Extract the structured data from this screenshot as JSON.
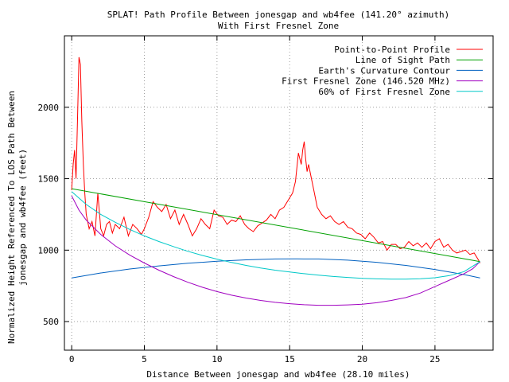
{
  "chart_data": {
    "type": "line",
    "title_line1": "SPLAT! Path Profile Between jonesgap and wb4fee (141.20° azimuth)",
    "title_line2": "With First Fresnel Zone",
    "xlabel": "Distance Between jonesgap and wb4fee (28.10 miles)",
    "ylabel_line1": "Normalized Height Referenced To LOS Path Between",
    "ylabel_line2": "jonesgap and wb4fee (feet)",
    "xlim": [
      -0.5,
      29
    ],
    "ylim": [
      300,
      2500
    ],
    "x_ticks": [
      0,
      5,
      10,
      15,
      20,
      25
    ],
    "y_ticks": [
      500,
      1000,
      1500,
      2000
    ],
    "grid": true,
    "legend_position": "top-right",
    "series": [
      {
        "name": "Point-to-Point Profile",
        "color": "#ff0000",
        "x": [
          0,
          0.1,
          0.2,
          0.3,
          0.4,
          0.5,
          0.6,
          0.7,
          0.8,
          0.9,
          1.0,
          1.2,
          1.4,
          1.6,
          1.8,
          2.0,
          2.2,
          2.4,
          2.6,
          2.8,
          3.0,
          3.3,
          3.6,
          3.9,
          4.2,
          4.5,
          4.8,
          5.0,
          5.3,
          5.6,
          5.9,
          6.2,
          6.5,
          6.8,
          7.1,
          7.4,
          7.7,
          8.0,
          8.3,
          8.6,
          8.9,
          9.2,
          9.5,
          9.8,
          10.1,
          10.4,
          10.7,
          11.0,
          11.3,
          11.6,
          11.9,
          12.2,
          12.5,
          12.8,
          13.1,
          13.4,
          13.7,
          14.0,
          14.3,
          14.6,
          14.9,
          15.2,
          15.4,
          15.6,
          15.8,
          15.9,
          16.0,
          16.1,
          16.2,
          16.3,
          16.5,
          16.7,
          16.9,
          17.2,
          17.5,
          17.8,
          18.1,
          18.4,
          18.7,
          19.0,
          19.3,
          19.6,
          19.9,
          20.2,
          20.5,
          20.8,
          21.1,
          21.4,
          21.7,
          22.0,
          22.3,
          22.6,
          22.9,
          23.2,
          23.5,
          23.8,
          24.1,
          24.4,
          24.7,
          25.0,
          25.3,
          25.6,
          25.9,
          26.2,
          26.5,
          26.8,
          27.1,
          27.4,
          27.7,
          28.0,
          28.1
        ],
        "y": [
          1420,
          1600,
          1700,
          1500,
          1900,
          2350,
          2300,
          1900,
          1600,
          1400,
          1250,
          1150,
          1200,
          1100,
          1400,
          1150,
          1100,
          1180,
          1200,
          1120,
          1180,
          1150,
          1230,
          1100,
          1180,
          1150,
          1110,
          1150,
          1230,
          1340,
          1300,
          1270,
          1320,
          1220,
          1280,
          1180,
          1250,
          1180,
          1100,
          1150,
          1220,
          1180,
          1150,
          1280,
          1240,
          1230,
          1180,
          1210,
          1200,
          1240,
          1180,
          1150,
          1130,
          1170,
          1190,
          1210,
          1250,
          1220,
          1280,
          1300,
          1350,
          1400,
          1480,
          1680,
          1600,
          1700,
          1760,
          1640,
          1550,
          1600,
          1500,
          1400,
          1300,
          1250,
          1220,
          1240,
          1200,
          1180,
          1200,
          1160,
          1150,
          1120,
          1110,
          1080,
          1120,
          1090,
          1050,
          1060,
          1000,
          1040,
          1040,
          1010,
          1020,
          1060,
          1030,
          1050,
          1020,
          1050,
          1010,
          1060,
          1080,
          1020,
          1040,
          1000,
          980,
          990,
          1000,
          970,
          980,
          930,
          910
        ]
      },
      {
        "name": "Line of Sight Path",
        "color": "#00a000",
        "x": [
          0,
          28.1
        ],
        "y": [
          1430,
          920
        ]
      },
      {
        "name": "Earth's Curvature Contour",
        "color": "#0060c0",
        "x": [
          0,
          2,
          4,
          6,
          8,
          10,
          12,
          14,
          15.5,
          17,
          19,
          21,
          23,
          25,
          27,
          28.1
        ],
        "y": [
          805,
          840,
          868,
          890,
          908,
          922,
          932,
          938,
          939,
          938,
          930,
          915,
          893,
          865,
          829,
          805
        ]
      },
      {
        "name": "First Fresnel Zone (146.520 MHz)",
        "color": "#a000c0",
        "x": [
          0,
          0.5,
          1,
          2,
          3,
          4,
          5,
          6,
          7,
          8,
          9,
          10,
          11,
          12,
          13,
          14,
          15,
          16,
          17,
          18,
          19,
          20,
          21,
          22,
          23,
          24,
          25,
          26,
          27,
          27.6,
          28.1
        ],
        "y": [
          1380,
          1280,
          1210,
          1110,
          1030,
          965,
          910,
          860,
          815,
          775,
          740,
          710,
          685,
          665,
          648,
          635,
          625,
          618,
          614,
          614,
          617,
          622,
          632,
          648,
          668,
          700,
          745,
          790,
          835,
          870,
          920
        ]
      },
      {
        "name": "60% of First Fresnel Zone",
        "color": "#00c8c8",
        "x": [
          0,
          1,
          2,
          3,
          4,
          5,
          6,
          7,
          8,
          9,
          10,
          11,
          12,
          13,
          14,
          15,
          16,
          17,
          18,
          19,
          20,
          21,
          22,
          23,
          24,
          25,
          26,
          27,
          28.1
        ],
        "y": [
          1410,
          1320,
          1250,
          1195,
          1145,
          1100,
          1060,
          1025,
          992,
          963,
          937,
          914,
          893,
          875,
          860,
          847,
          835,
          825,
          816,
          809,
          803,
          799,
          797,
          797,
          800,
          807,
          822,
          850,
          920
        ]
      }
    ]
  }
}
